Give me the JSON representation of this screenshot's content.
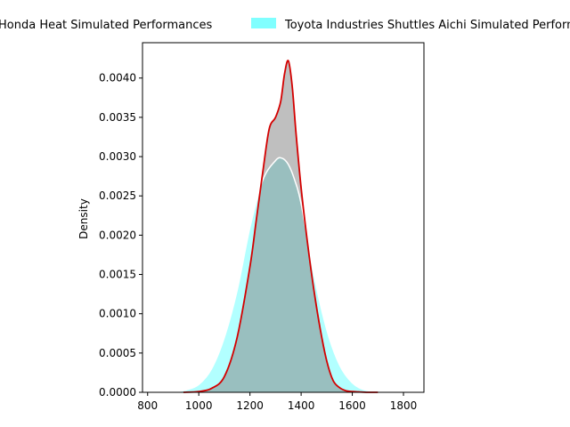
{
  "chart_data": {
    "type": "area",
    "title": "",
    "xlabel": "",
    "ylabel": "Density",
    "xlim": [
      780,
      1880
    ],
    "ylim": [
      0,
      0.00445
    ],
    "xticks": [
      800,
      1000,
      1200,
      1400,
      1600,
      1800
    ],
    "xtick_labels": [
      "800",
      "1000",
      "1200",
      "1400",
      "1600",
      "1800"
    ],
    "yticks": [
      0,
      0.0005,
      0.001,
      0.0015,
      0.002,
      0.0025,
      0.003,
      0.0035,
      0.004
    ],
    "ytick_labels": [
      "0.0000",
      "0.0005",
      "0.0010",
      "0.0015",
      "0.0020",
      "0.0025",
      "0.0030",
      "0.0035",
      "0.0040"
    ],
    "legend_position": "top, above plot",
    "series": [
      {
        "name": "Honda Heat Simulated Performances",
        "fill_color": "#808080",
        "fill_opacity": 0.5,
        "line_color": "#d40000",
        "x": [
          940,
          1000,
          1050,
          1100,
          1150,
          1200,
          1225,
          1250,
          1275,
          1300,
          1320,
          1335,
          1350,
          1365,
          1380,
          1400,
          1425,
          1450,
          1475,
          1500,
          1525,
          1550,
          1575,
          1600,
          1625,
          1660,
          1700
        ],
        "y": [
          0,
          1e-05,
          5e-05,
          0.0002,
          0.0007,
          0.0016,
          0.0022,
          0.0028,
          0.00335,
          0.0035,
          0.0037,
          0.00405,
          0.00422,
          0.0039,
          0.0033,
          0.0026,
          0.0019,
          0.0013,
          0.0008,
          0.0004,
          0.00015,
          6e-05,
          2e-05,
          1e-05,
          5e-06,
          0,
          0
        ]
      },
      {
        "name": "Toyota Industries Shuttles Aichi Simulated Performances",
        "fill_color": "#00ffff",
        "fill_opacity": 0.3,
        "line_color": "#ffffff",
        "x": [
          900,
          950,
          1000,
          1050,
          1100,
          1150,
          1200,
          1250,
          1300,
          1325,
          1350,
          1375,
          1400,
          1450,
          1500,
          1550,
          1600,
          1650,
          1700,
          1750
        ],
        "y": [
          0,
          3e-05,
          0.0001,
          0.0003,
          0.0007,
          0.0013,
          0.0021,
          0.0027,
          0.00295,
          0.00298,
          0.0029,
          0.0027,
          0.0024,
          0.0015,
          0.0008,
          0.00035,
          0.00012,
          3e-05,
          1e-05,
          0
        ]
      }
    ]
  }
}
